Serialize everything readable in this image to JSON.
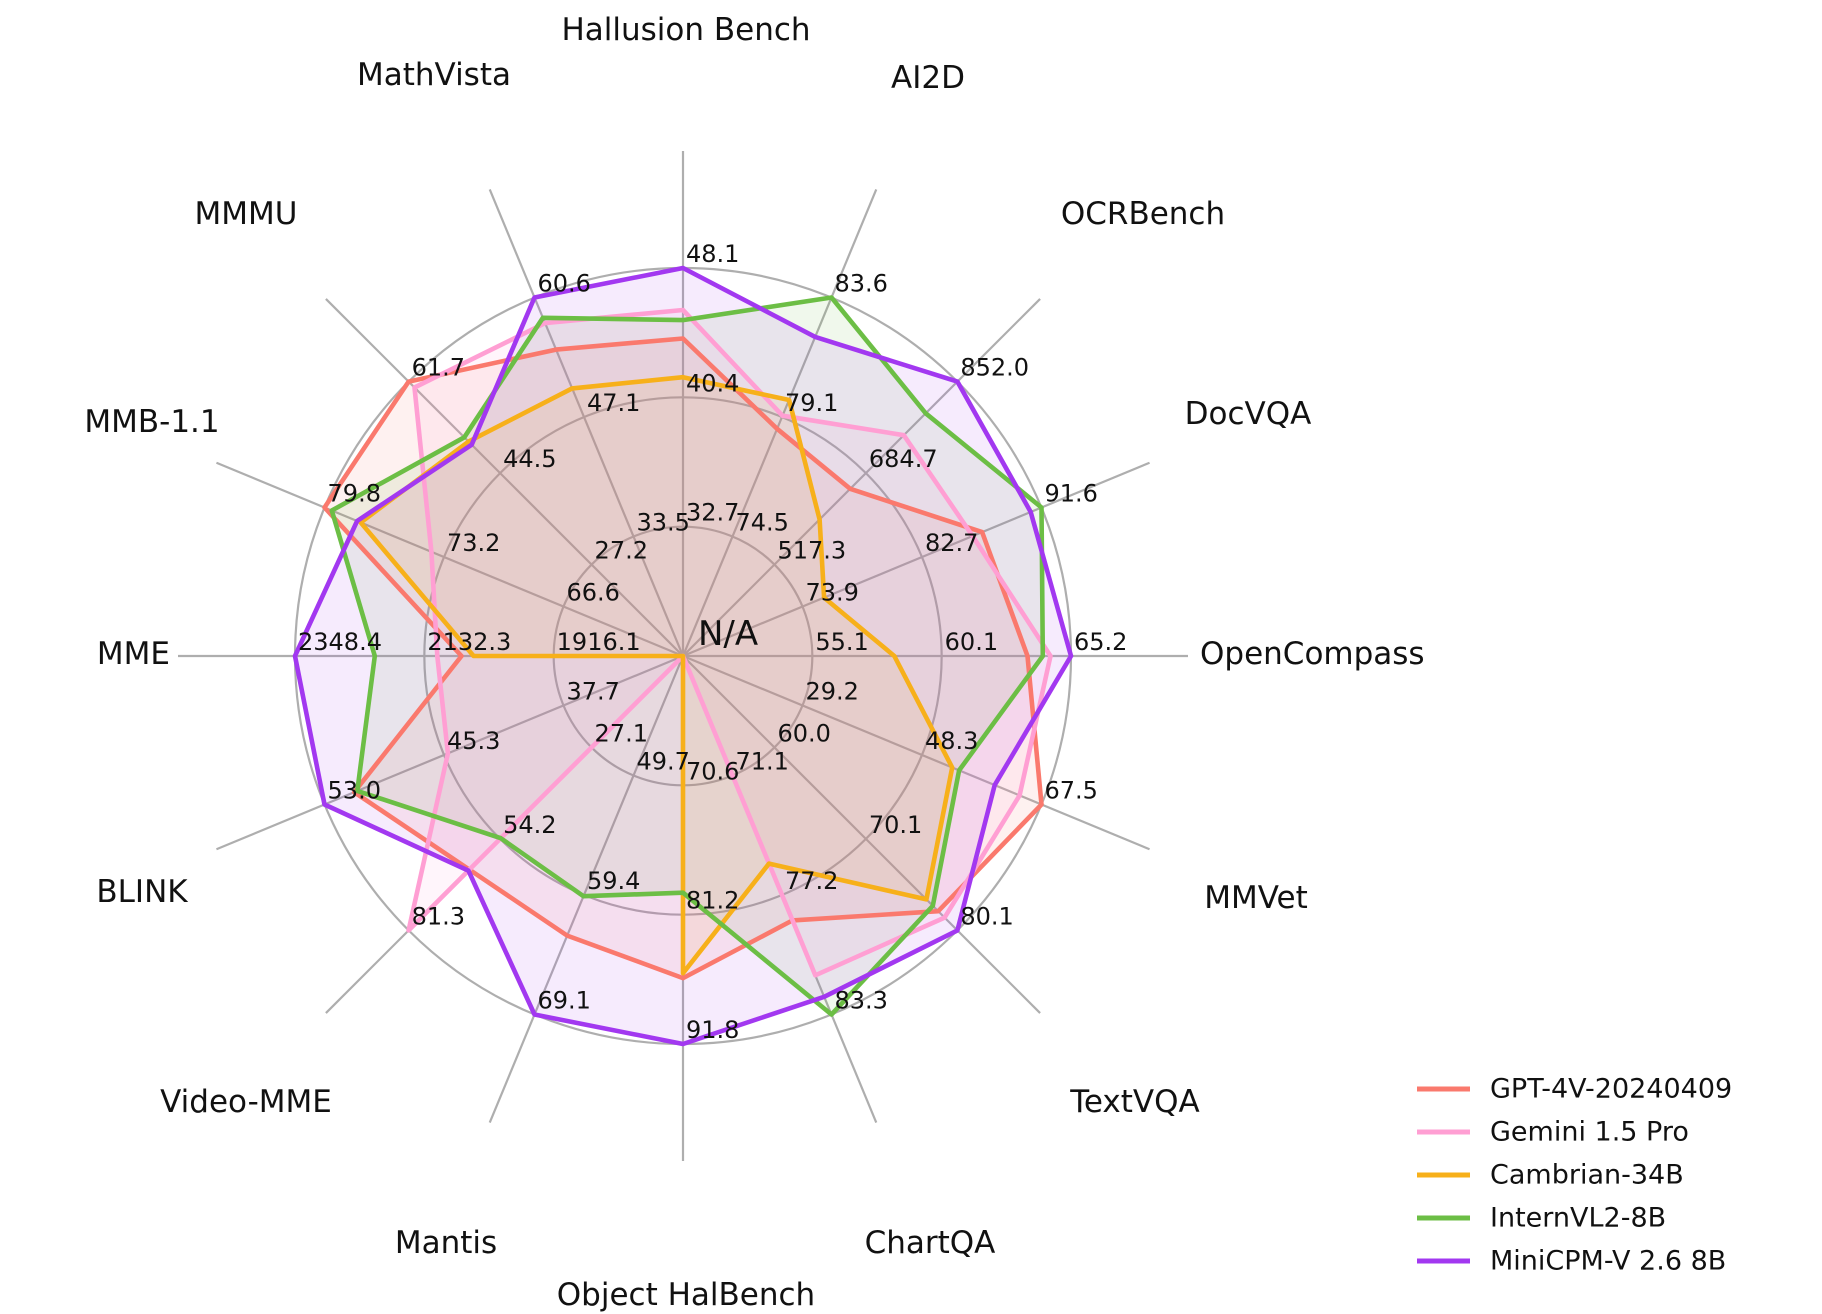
{
  "chart_data": {
    "type": "radar",
    "title": "",
    "center_label": "N/A",
    "grid": {
      "rings": 3,
      "color": "#aeaeae",
      "spoke_color": "#aeaeae"
    },
    "legend_position": "lower right",
    "axes": [
      {
        "label": "Hallusion Bench",
        "ticks": [
          32.7,
          40.4,
          48.1
        ]
      },
      {
        "label": "AI2D",
        "ticks": [
          74.5,
          79.1,
          83.6
        ]
      },
      {
        "label": "OCRBench",
        "ticks": [
          517.3,
          684.7,
          852.0
        ]
      },
      {
        "label": "DocVQA",
        "ticks": [
          73.9,
          82.7,
          91.6
        ]
      },
      {
        "label": "OpenCompass",
        "ticks": [
          55.1,
          60.1,
          65.2
        ]
      },
      {
        "label": "MMVet",
        "ticks": [
          29.2,
          48.3,
          67.5
        ]
      },
      {
        "label": "TextVQA",
        "ticks": [
          60.0,
          70.1,
          80.1
        ]
      },
      {
        "label": "ChartQA",
        "ticks": [
          71.1,
          77.2,
          83.3
        ]
      },
      {
        "label": "Object HalBench",
        "ticks": [
          70.6,
          81.2,
          91.8
        ]
      },
      {
        "label": "Mantis",
        "ticks": [
          49.7,
          59.4,
          69.1
        ]
      },
      {
        "label": "Video-MME",
        "ticks": [
          27.1,
          54.2,
          81.3
        ]
      },
      {
        "label": "BLINK",
        "ticks": [
          37.7,
          45.3,
          53.0
        ]
      },
      {
        "label": "MME",
        "ticks": [
          1916.1,
          2132.3,
          2348.4
        ]
      },
      {
        "label": "MMB-1.1",
        "ticks": [
          66.6,
          73.2,
          79.8
        ]
      },
      {
        "label": "MMMU",
        "ticks": [
          27.2,
          44.5,
          61.7
        ]
      },
      {
        "label": "MathVista",
        "ticks": [
          33.5,
          47.1,
          60.6
        ]
      }
    ],
    "series": [
      {
        "name": "GPT-4V-20240409",
        "color": "#fa796d",
        "values": [
          43.9,
          78.6,
          656.0,
          87.2,
          63.5,
          67.5,
          78.0,
          78.5,
          86.4,
          62.7,
          63.3,
          51.1,
          2070.2,
          79.8,
          61.7,
          54.7
        ]
      },
      {
        "name": "Gemini 1.5 Pro",
        "color": "#ff9fd3",
        "values": [
          45.6,
          79.1,
          754.0,
          86.5,
          64.4,
          64.0,
          78.7,
          81.3,
          null,
          null,
          81.3,
          45.1,
          2110.6,
          73.9,
          60.6,
          57.7
        ]
      },
      {
        "name": "Cambrian-34B",
        "color": "#f7b01a",
        "values": [
          41.6,
          79.7,
          600.0,
          75.5,
          58.3,
          53.2,
          76.7,
          75.6,
          86.0,
          null,
          null,
          null,
          2049.9,
          77.8,
          50.4,
          50.3
        ]
      },
      {
        "name": "InternVL2-8B",
        "color": "#6cbe45",
        "values": [
          45.0,
          83.6,
          794.0,
          91.6,
          64.1,
          54.3,
          77.4,
          83.3,
          79.4,
          59.5,
          54.0,
          50.9,
          2215.1,
          79.4,
          51.2,
          58.3
        ]
      },
      {
        "name": "MiniCPM-V 2.6 8B",
        "color": "#a238f0",
        "values": [
          48.1,
          82.1,
          852.0,
          90.8,
          65.2,
          60.0,
          80.1,
          82.4,
          91.8,
          69.1,
          63.6,
          53.0,
          2348.4,
          78.0,
          49.8,
          60.6
        ]
      }
    ]
  }
}
